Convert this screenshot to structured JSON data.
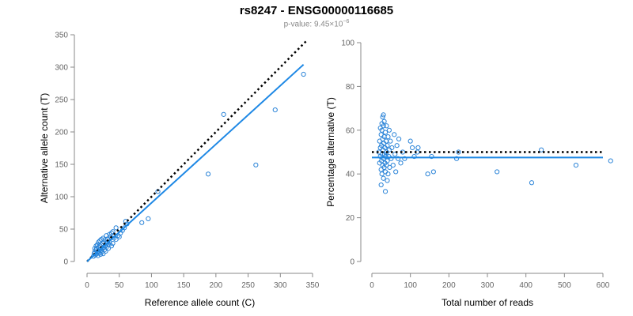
{
  "header": {
    "title": "rs8247 - ENSG00000116685",
    "subtitle_prefix": "p-value: 9.45×10",
    "subtitle_exp": "−6"
  },
  "colors": {
    "points": "#2b84d8",
    "fit": "#1e88e5",
    "reference": "#000000",
    "axis": "#888888"
  },
  "chart_data": [
    {
      "type": "scatter",
      "xlabel": "Reference allele count (C)",
      "ylabel": "Alternative allele count (T)",
      "xlim": [
        0,
        350
      ],
      "ylim": [
        0,
        350
      ],
      "xticks": [
        "0",
        "50",
        "100",
        "150",
        "200",
        "250",
        "300",
        "350"
      ],
      "yticks": [
        "0",
        "50",
        "100",
        "150",
        "200",
        "250",
        "300",
        "350"
      ],
      "grid": false,
      "reference_line": {
        "x": [
          0,
          340
        ],
        "y": [
          0,
          340
        ],
        "style": "dotted"
      },
      "fit_line": {
        "x": [
          0,
          336
        ],
        "y": [
          0,
          304
        ]
      },
      "points": [
        [
          10,
          8
        ],
        [
          11,
          12
        ],
        [
          12,
          15
        ],
        [
          13,
          10
        ],
        [
          14,
          18
        ],
        [
          15,
          12
        ],
        [
          15,
          20
        ],
        [
          16,
          14
        ],
        [
          17,
          9
        ],
        [
          18,
          16
        ],
        [
          18,
          22
        ],
        [
          19,
          13
        ],
        [
          20,
          18
        ],
        [
          20,
          24
        ],
        [
          21,
          11
        ],
        [
          22,
          17
        ],
        [
          22,
          26
        ],
        [
          23,
          15
        ],
        [
          24,
          20
        ],
        [
          24,
          28
        ],
        [
          25,
          12
        ],
        [
          26,
          22
        ],
        [
          26,
          30
        ],
        [
          27,
          18
        ],
        [
          28,
          25
        ],
        [
          29,
          16
        ],
        [
          30,
          22
        ],
        [
          31,
          28
        ],
        [
          32,
          35
        ],
        [
          33,
          20
        ],
        [
          34,
          26
        ],
        [
          35,
          30
        ],
        [
          36,
          38
        ],
        [
          38,
          24
        ],
        [
          40,
          28
        ],
        [
          42,
          36
        ],
        [
          45,
          34
        ],
        [
          48,
          40
        ],
        [
          50,
          38
        ],
        [
          52,
          44
        ],
        [
          55,
          48
        ],
        [
          58,
          52
        ],
        [
          60,
          62
        ],
        [
          62,
          58
        ],
        [
          20,
          32
        ],
        [
          25,
          36
        ],
        [
          30,
          40
        ],
        [
          35,
          42
        ],
        [
          28,
          34
        ],
        [
          32,
          30
        ],
        [
          12,
          20
        ],
        [
          14,
          24
        ],
        [
          16,
          26
        ],
        [
          18,
          30
        ],
        [
          22,
          34
        ],
        [
          45,
          52
        ],
        [
          40,
          46
        ],
        [
          38,
          44
        ],
        [
          85,
          60
        ],
        [
          95,
          66
        ],
        [
          110,
          108
        ],
        [
          188,
          135
        ],
        [
          212,
          227
        ],
        [
          262,
          149
        ],
        [
          292,
          234
        ],
        [
          336,
          289
        ]
      ]
    },
    {
      "type": "scatter",
      "xlabel": "Total number of reads",
      "ylabel": "Percentage alternative (T)",
      "xlim": [
        0,
        600
      ],
      "ylim": [
        0,
        100
      ],
      "xticks": [
        "0",
        "100",
        "200",
        "300",
        "400",
        "500",
        "600"
      ],
      "yticks": [
        "0",
        "20",
        "40",
        "60",
        "80",
        "100"
      ],
      "grid": false,
      "reference_line": {
        "y": 50,
        "style": "dotted"
      },
      "fit_line": {
        "y": 47.5
      },
      "points": [
        [
          18,
          50
        ],
        [
          20,
          45
        ],
        [
          20,
          55
        ],
        [
          22,
          48
        ],
        [
          22,
          52
        ],
        [
          24,
          42
        ],
        [
          24,
          58
        ],
        [
          25,
          46
        ],
        [
          25,
          53
        ],
        [
          26,
          40
        ],
        [
          26,
          60
        ],
        [
          27,
          49
        ],
        [
          28,
          44
        ],
        [
          28,
          56
        ],
        [
          29,
          51
        ],
        [
          30,
          38
        ],
        [
          30,
          62
        ],
        [
          30,
          47
        ],
        [
          31,
          54
        ],
        [
          32,
          43
        ],
        [
          32,
          57
        ],
        [
          33,
          49
        ],
        [
          34,
          45
        ],
        [
          34,
          52
        ],
        [
          35,
          41
        ],
        [
          35,
          59
        ],
        [
          36,
          48
        ],
        [
          37,
          55
        ],
        [
          38,
          44
        ],
        [
          38,
          50
        ],
        [
          40,
          46
        ],
        [
          40,
          53
        ],
        [
          42,
          40
        ],
        [
          42,
          57
        ],
        [
          44,
          48
        ],
        [
          45,
          51
        ],
        [
          46,
          43
        ],
        [
          48,
          55
        ],
        [
          50,
          47
        ],
        [
          52,
          52
        ],
        [
          55,
          44
        ],
        [
          58,
          58
        ],
        [
          60,
          49
        ],
        [
          62,
          41
        ],
        [
          65,
          53
        ],
        [
          68,
          47
        ],
        [
          70,
          56
        ],
        [
          75,
          45
        ],
        [
          80,
          50
        ],
        [
          85,
          47
        ],
        [
          28,
          66
        ],
        [
          30,
          67
        ],
        [
          32,
          64
        ],
        [
          24,
          35
        ],
        [
          35,
          32
        ],
        [
          40,
          37
        ],
        [
          22,
          61
        ],
        [
          38,
          62
        ],
        [
          26,
          63
        ],
        [
          45,
          60
        ],
        [
          100,
          55
        ],
        [
          105,
          52
        ],
        [
          110,
          48
        ],
        [
          118,
          50
        ],
        [
          120,
          52
        ],
        [
          145,
          40
        ],
        [
          155,
          48
        ],
        [
          160,
          41
        ],
        [
          220,
          47
        ],
        [
          225,
          50
        ],
        [
          325,
          41
        ],
        [
          415,
          36
        ],
        [
          440,
          51
        ],
        [
          530,
          44
        ],
        [
          620,
          46
        ]
      ]
    }
  ]
}
